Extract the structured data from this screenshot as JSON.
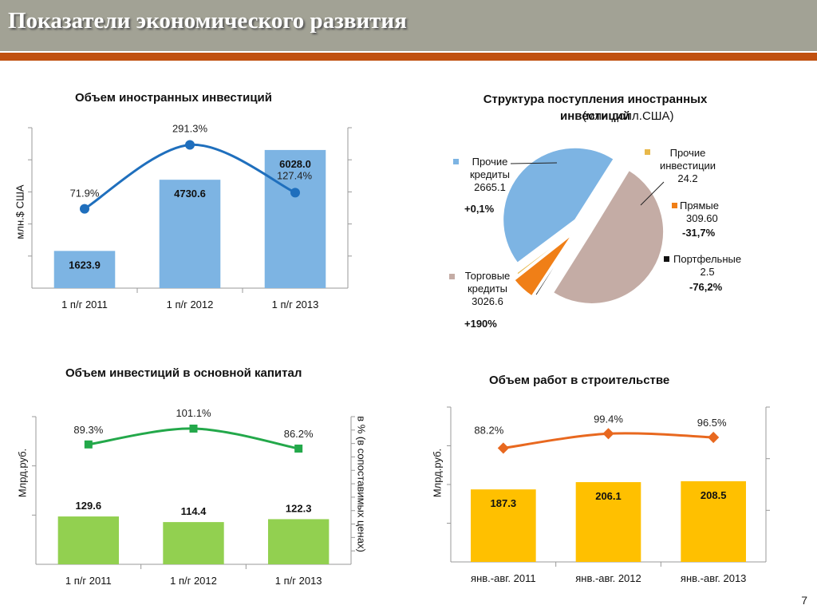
{
  "page": {
    "title": "Показатели экономического развития",
    "page_number": "7"
  },
  "colors": {
    "banner": "#a2a295",
    "stripe": "#c0500f",
    "bar_blue": "#7db4e3",
    "line_blue": "#1f6fbd",
    "bar_green": "#92d050",
    "line_green": "#23a84a",
    "bar_yellow": "#ffc000",
    "line_orange": "#e8681f"
  },
  "chart_data": [
    {
      "type": "bar",
      "title": "Объем иностранных инвестиций",
      "ylabel": "млн.$ США",
      "categories": [
        "1 п/г 2011",
        "1 п/г 2012",
        "1 п/г 2013"
      ],
      "series": [
        {
          "values": [
            1623.9,
            4730.6,
            6028.0
          ],
          "labels": [
            "1623.9",
            "4730.6",
            "6028.0"
          ]
        },
        {
          "type": "line",
          "values": [
            71.9,
            291.3,
            127.4
          ],
          "labels": [
            "71.9%",
            "291.3%",
            "127.4%"
          ]
        }
      ],
      "ylim": [
        0,
        7000
      ],
      "y2lim": [
        -200,
        350
      ]
    },
    {
      "type": "pie",
      "title_bold": "Структура поступления иностранных инвестиций",
      "title_normal": "(млн.долл.США)",
      "slices": [
        {
          "name": "Прочие кредиты",
          "value": 2665.1,
          "value_label": "2665.1",
          "change": "+0,1%",
          "color": "#7db4e3"
        },
        {
          "name": "Прочие инвестиции",
          "value": 24.2,
          "value_label": "24.2",
          "change": "",
          "color": "#e8b84a"
        },
        {
          "name": "Прямые",
          "value": 309.6,
          "value_label": "309.60",
          "change": "-31,7%",
          "color": "#f07f17"
        },
        {
          "name": "Портфельные",
          "value": 2.5,
          "value_label": "2.5",
          "change": "-76,2%",
          "color": "#111111"
        },
        {
          "name": "Торговые кредиты",
          "value": 3026.6,
          "value_label": "3026.6",
          "change": "+190%",
          "color": "#c4aca5"
        }
      ]
    },
    {
      "type": "bar",
      "title": "Объем инвестиций в основной капитал",
      "ylabel": "Млрд.руб.",
      "y2label": "в % (в сопоставимых ценах)",
      "categories": [
        "1 п/г 2011",
        "1 п/г 2012",
        "1 п/г 2013"
      ],
      "series": [
        {
          "values": [
            129.6,
            114.4,
            122.3
          ],
          "labels": [
            "129.6",
            "114.4",
            "122.3"
          ]
        },
        {
          "type": "line",
          "values": [
            89.3,
            101.1,
            86.2
          ],
          "labels": [
            "89.3%",
            "101.1%",
            "86.2%"
          ]
        }
      ],
      "ylim": [
        0,
        400
      ],
      "y2lim": [
        0,
        110
      ]
    },
    {
      "type": "bar",
      "title": "Объем работ в строительстве",
      "ylabel": "Млрд.руб.",
      "categories": [
        "янв.-авг. 2011",
        "янв.-авг. 2012",
        "янв.-авг. 2013"
      ],
      "series": [
        {
          "values": [
            187.3,
            206.1,
            208.5
          ],
          "labels": [
            "187.3",
            "206.1",
            "208.5"
          ]
        },
        {
          "type": "line",
          "values": [
            88.2,
            99.4,
            96.5
          ],
          "labels": [
            "88.2%",
            "99.4%",
            "96.5%"
          ]
        }
      ],
      "ylim": [
        0,
        400
      ],
      "y2lim": [
        0,
        120
      ]
    }
  ]
}
